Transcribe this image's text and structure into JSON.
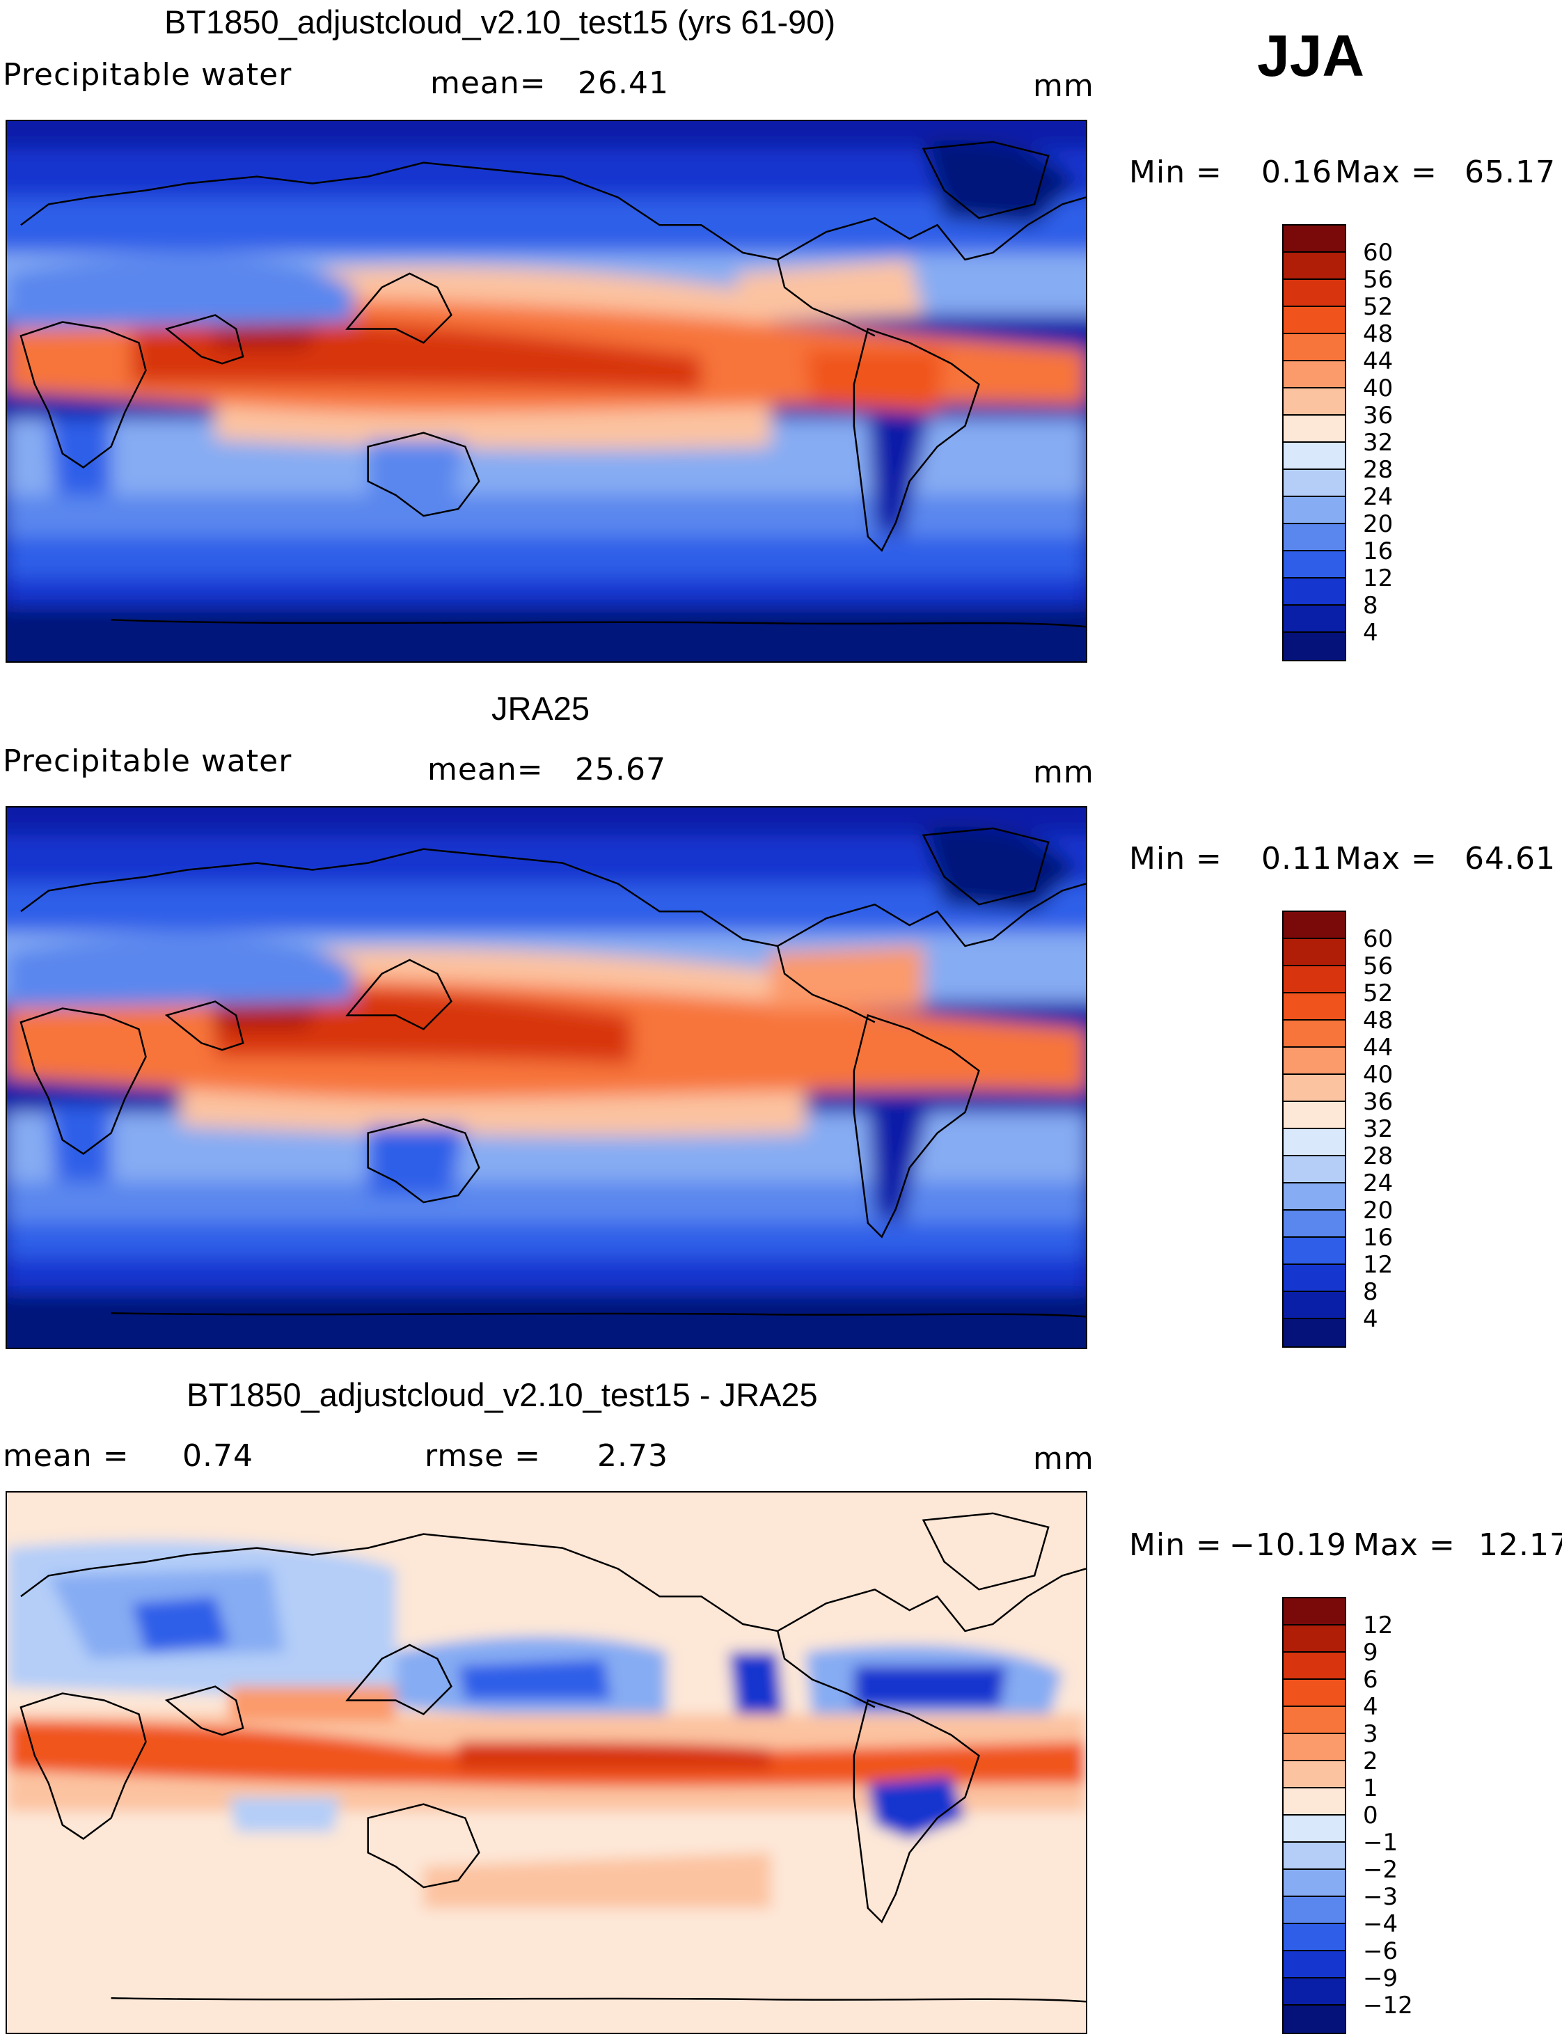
{
  "season": "JJA",
  "panels": [
    {
      "title": "BT1850_adjustcloud_v2.10_test15 (yrs 61-90)",
      "variable": "Precipitable water",
      "mean_label": "mean=",
      "mean_value": "26.41",
      "units": "mm",
      "min_label": "Min =",
      "min_value": "0.16",
      "max_label": "Max =",
      "max_value": "65.17",
      "colorbar_labels": [
        "60",
        "56",
        "52",
        "48",
        "44",
        "40",
        "36",
        "32",
        "28",
        "24",
        "20",
        "16",
        "12",
        "8",
        "4"
      ]
    },
    {
      "title": "JRA25",
      "variable": "Precipitable water",
      "mean_label": "mean=",
      "mean_value": "25.67",
      "units": "mm",
      "min_label": "Min =",
      "min_value": "0.11",
      "max_label": "Max =",
      "max_value": "64.61",
      "colorbar_labels": [
        "60",
        "56",
        "52",
        "48",
        "44",
        "40",
        "36",
        "32",
        "28",
        "24",
        "20",
        "16",
        "12",
        "8",
        "4"
      ]
    },
    {
      "title": "BT1850_adjustcloud_v2.10_test15 - JRA25",
      "mean_label": "mean =",
      "mean_value": "0.74",
      "rmse_label": "rmse =",
      "rmse_value": "2.73",
      "units": "mm",
      "min_label": "Min =",
      "min_value": "−10.19",
      "max_label": "Max =",
      "max_value": "12.17",
      "colorbar_labels": [
        "12",
        "9",
        "6",
        "4",
        "3",
        "2",
        "1",
        "0",
        "−1",
        "−2",
        "−3",
        "−4",
        "−6",
        "−9",
        "−12"
      ]
    }
  ],
  "colors": {
    "abs_scale": [
      "#7a0a0a",
      "#b01e08",
      "#d8350f",
      "#f0541c",
      "#f7743a",
      "#fb9a6a",
      "#fcc3a0",
      "#fde7d7",
      "#d9e8fb",
      "#b4cef8",
      "#86acf3",
      "#5a87ee",
      "#2f5fe8",
      "#1536cf",
      "#0a1fa8",
      "#05127a"
    ],
    "diff_scale": [
      "#7a0a0a",
      "#b01e08",
      "#d8350f",
      "#f0541c",
      "#f7743a",
      "#fb9a6a",
      "#fcc3a0",
      "#fde7d7",
      "#d9e8fb",
      "#b4cef8",
      "#86acf3",
      "#5a87ee",
      "#2f5fe8",
      "#1536cf",
      "#0a1fa8",
      "#05127a"
    ]
  }
}
